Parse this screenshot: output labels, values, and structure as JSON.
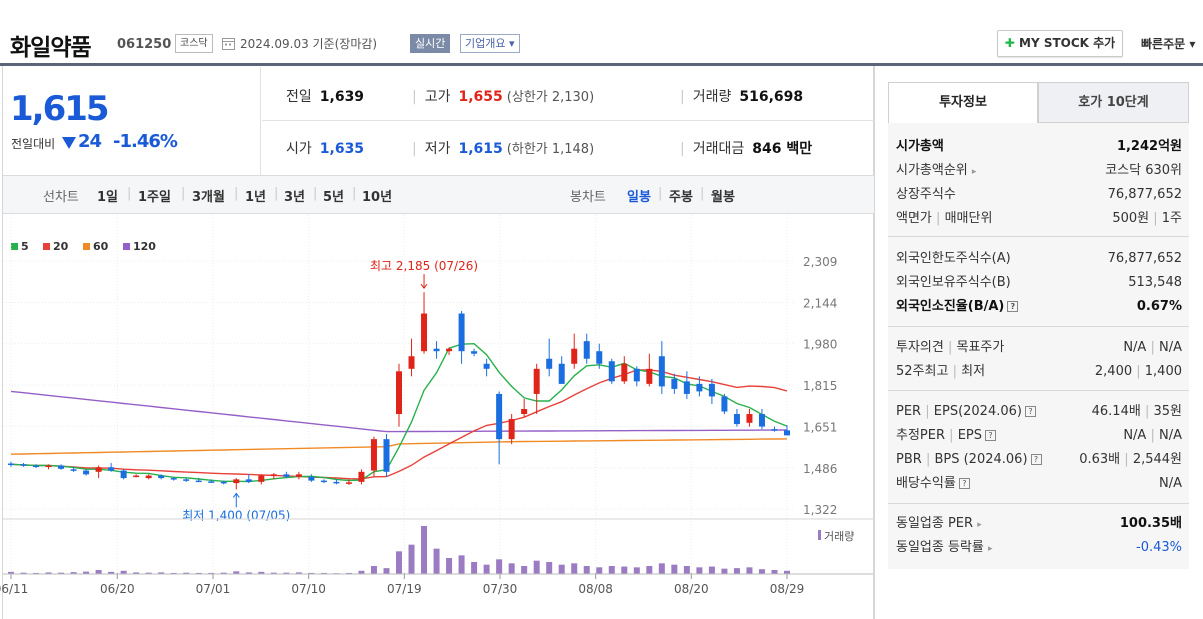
{
  "header": {
    "company_name": "화일약품",
    "stock_code": "061250",
    "market": "코스닥",
    "date_text": "2024.09.03  기준(장마감)",
    "realtime_label": "실시간",
    "company_info_label": "기업개요 ▾",
    "mystock_label": "MY STOCK 추가",
    "quick_order_label": "빠른주문 ▾"
  },
  "price": {
    "current": "1,615",
    "change_label": "전일대비",
    "change_amount": "24",
    "change_percent": "-1.46%",
    "direction": "down"
  },
  "stats": {
    "prev_close_label": "전일",
    "prev_close": "1,639",
    "high_label": "고가",
    "high": "1,655",
    "upper_limit": "(상한가 2,130)",
    "volume_label": "거래량",
    "volume": "516,698",
    "open_label": "시가",
    "open": "1,635",
    "low_label": "저가",
    "low": "1,615",
    "lower_limit": "(하한가 1,148)",
    "trade_value_label": "거래대금",
    "trade_value": "846 백만"
  },
  "period_bar": {
    "line_chart_label": "선차트",
    "line_periods": [
      "1일",
      "1주일",
      "3개월",
      "1년",
      "3년",
      "5년",
      "10년"
    ],
    "candle_chart_label": "봉차트",
    "candle_periods": [
      "일봉",
      "주봉",
      "월봉"
    ],
    "active_candle": "일봉"
  },
  "chart_data": {
    "type": "candlestick",
    "legend": [
      {
        "name": "5",
        "color": "#27b14a"
      },
      {
        "name": "20",
        "color": "#e8413a"
      },
      {
        "name": "60",
        "color": "#f08a24"
      },
      {
        "name": "120",
        "color": "#9460c8"
      }
    ],
    "y_ticks": [
      "2,309",
      "2,144",
      "1,980",
      "1,815",
      "1,651",
      "1,486",
      "1,322"
    ],
    "x_ticks": [
      "06/11",
      "06/20",
      "07/01",
      "07/10",
      "07/19",
      "07/30",
      "08/08",
      "08/20",
      "08/29"
    ],
    "y_range": [
      1322,
      2309
    ],
    "max_annotation": "최고 2,185 (07/26)",
    "min_annotation": "최저 1,400 (07/05)",
    "volume_label": "거래량",
    "colors": {
      "up": "#e0241a",
      "down": "#1a6ee0",
      "volume": "#9b7cc2"
    },
    "candles": [
      [
        1503,
        1510,
        1490,
        1500
      ],
      [
        1500,
        1505,
        1490,
        1495
      ],
      [
        1495,
        1500,
        1485,
        1490
      ],
      [
        1490,
        1500,
        1480,
        1495
      ],
      [
        1495,
        1500,
        1478,
        1482
      ],
      [
        1480,
        1490,
        1470,
        1475
      ],
      [
        1475,
        1480,
        1455,
        1460
      ],
      [
        1470,
        1495,
        1445,
        1488
      ],
      [
        1488,
        1505,
        1470,
        1475
      ],
      [
        1475,
        1480,
        1440,
        1445
      ],
      [
        1455,
        1460,
        1448,
        1455
      ],
      [
        1445,
        1460,
        1440,
        1455
      ],
      [
        1455,
        1460,
        1440,
        1445
      ],
      [
        1445,
        1450,
        1435,
        1440
      ],
      [
        1440,
        1445,
        1430,
        1435
      ],
      [
        1435,
        1445,
        1430,
        1432
      ],
      [
        1432,
        1440,
        1428,
        1430
      ],
      [
        1430,
        1435,
        1420,
        1425
      ],
      [
        1425,
        1445,
        1400,
        1440
      ],
      [
        1440,
        1460,
        1425,
        1430
      ],
      [
        1430,
        1460,
        1420,
        1455
      ],
      [
        1455,
        1465,
        1440,
        1460
      ],
      [
        1460,
        1470,
        1445,
        1450
      ],
      [
        1450,
        1470,
        1440,
        1460
      ],
      [
        1450,
        1460,
        1430,
        1435
      ],
      [
        1435,
        1440,
        1425,
        1430
      ],
      [
        1430,
        1440,
        1420,
        1425
      ],
      [
        1425,
        1440,
        1418,
        1428
      ],
      [
        1430,
        1480,
        1420,
        1470
      ],
      [
        1475,
        1610,
        1450,
        1600
      ],
      [
        1600,
        1620,
        1450,
        1470
      ],
      [
        1700,
        1900,
        1650,
        1870
      ],
      [
        1880,
        2000,
        1850,
        1930
      ],
      [
        1950,
        2185,
        1940,
        2100
      ],
      [
        1960,
        1990,
        1920,
        1950
      ],
      [
        1950,
        1965,
        1935,
        1960
      ],
      [
        2100,
        2110,
        1900,
        1950
      ],
      [
        1950,
        1960,
        1930,
        1940
      ],
      [
        1900,
        1920,
        1850,
        1880
      ],
      [
        1780,
        1790,
        1500,
        1600
      ],
      [
        1600,
        1700,
        1580,
        1680
      ],
      [
        1700,
        1760,
        1690,
        1720
      ],
      [
        1780,
        1900,
        1700,
        1880
      ],
      [
        1920,
        2000,
        1850,
        1880
      ],
      [
        1900,
        1930,
        1820,
        1820
      ],
      [
        1900,
        2020,
        1880,
        1960
      ],
      [
        1990,
        2020,
        1900,
        1920
      ],
      [
        1950,
        1980,
        1880,
        1900
      ],
      [
        1910,
        1920,
        1820,
        1830
      ],
      [
        1830,
        1930,
        1820,
        1900
      ],
      [
        1880,
        1890,
        1810,
        1830
      ],
      [
        1820,
        1940,
        1810,
        1880
      ],
      [
        1930,
        1990,
        1780,
        1810
      ],
      [
        1840,
        1860,
        1780,
        1800
      ],
      [
        1830,
        1870,
        1760,
        1780
      ],
      [
        1820,
        1850,
        1770,
        1790
      ],
      [
        1820,
        1840,
        1740,
        1770
      ],
      [
        1770,
        1780,
        1700,
        1710
      ],
      [
        1700,
        1720,
        1650,
        1660
      ],
      [
        1665,
        1720,
        1650,
        1700
      ],
      [
        1700,
        1720,
        1640,
        1650
      ],
      [
        1640,
        1650,
        1630,
        1635
      ],
      [
        1635,
        1655,
        1615,
        1615
      ]
    ],
    "volumes": [
      8,
      5,
      4,
      6,
      5,
      7,
      9,
      15,
      8,
      12,
      6,
      5,
      6,
      4,
      5,
      4,
      4,
      5,
      10,
      6,
      8,
      5,
      5,
      6,
      4,
      4,
      3,
      4,
      12,
      30,
      22,
      85,
      110,
      180,
      95,
      60,
      70,
      45,
      35,
      55,
      40,
      30,
      50,
      45,
      35,
      40,
      30,
      25,
      30,
      28,
      25,
      30,
      40,
      35,
      30,
      25,
      28,
      20,
      22,
      25,
      18,
      15,
      12
    ]
  },
  "invest_panel": {
    "tab_active": "투자정보",
    "tab_inactive": "호가 10단계",
    "market_cap_label": "시가총액",
    "market_cap": "1,242억원",
    "market_cap_rank_label": "시가총액순위",
    "market_cap_rank": "코스닥 630위",
    "listed_shares_label": "상장주식수",
    "listed_shares": "76,877,652",
    "face_value_label": "액면가",
    "trade_unit_label": "매매단위",
    "face_value": "500원",
    "trade_unit": "1주",
    "foreign_limit_label": "외국인한도주식수(A)",
    "foreign_limit": "76,877,652",
    "foreign_hold_label": "외국인보유주식수(B)",
    "foreign_hold": "513,548",
    "foreign_ratio_label": "외국인소진율(B/A)",
    "foreign_ratio": "0.67%",
    "opinion_label": "투자의견",
    "target_label": "목표주가",
    "opinion": "N/A",
    "target": "N/A",
    "w52_high_label": "52주최고",
    "w52_low_label": "최저",
    "w52_high": "2,400",
    "w52_low": "1,400",
    "per_label": "PER",
    "eps_label": "EPS(2024.06)",
    "per": "46.14배",
    "eps": "35원",
    "est_per_label": "추정PER",
    "est_eps_label": "EPS",
    "est_per": "N/A",
    "est_eps": "N/A",
    "pbr_label": "PBR",
    "bps_label": "BPS (2024.06)",
    "pbr": "0.63배",
    "bps": "2,544원",
    "dividend_label": "배당수익률",
    "dividend": "N/A",
    "industry_per_label": "동일업종 PER",
    "industry_per": "100.35배",
    "industry_rate_label": "동일업종 등락률",
    "industry_rate": "-0.43%"
  }
}
